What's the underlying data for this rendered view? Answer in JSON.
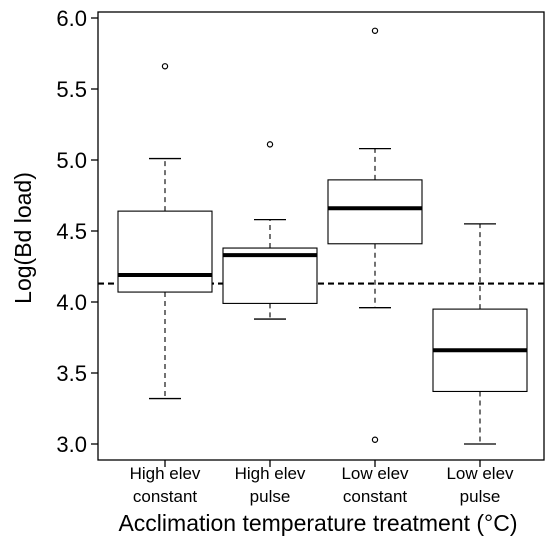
{
  "chart_data": {
    "type": "boxplot",
    "title": "",
    "xlabel": "Acclimation temperature treatment (°C)",
    "ylabel": "Log(Bd load)",
    "ylim": [
      2.9,
      6.05
    ],
    "yticks": [
      3.0,
      3.5,
      4.0,
      4.5,
      5.0,
      5.5,
      6.0
    ],
    "ytick_labels": [
      "3.0",
      "3.5",
      "4.0",
      "4.5",
      "5.0",
      "5.5",
      "6.0"
    ],
    "grid": false,
    "legend": "none",
    "reference_line": {
      "y": 4.13,
      "style": "dashed"
    },
    "groups": [
      {
        "label_line1": "High elev",
        "label_line2": "constant",
        "whisker_low": 3.32,
        "q1": 4.07,
        "median": 4.19,
        "q3": 4.64,
        "whisker_high": 5.01,
        "outliers": [
          5.66
        ]
      },
      {
        "label_line1": "High elev",
        "label_line2": "pulse",
        "whisker_low": 3.88,
        "q1": 3.99,
        "median": 4.33,
        "q3": 4.38,
        "whisker_high": 4.58,
        "outliers": [
          5.11
        ]
      },
      {
        "label_line1": "Low elev",
        "label_line2": "constant",
        "whisker_low": 3.96,
        "q1": 4.41,
        "median": 4.66,
        "q3": 4.86,
        "whisker_high": 5.08,
        "outliers": [
          5.91,
          3.03
        ]
      },
      {
        "label_line1": "Low elev",
        "label_line2": "pulse",
        "whisker_low": 3.0,
        "q1": 3.37,
        "median": 3.66,
        "q3": 3.95,
        "whisker_high": 4.55,
        "outliers": []
      }
    ]
  }
}
